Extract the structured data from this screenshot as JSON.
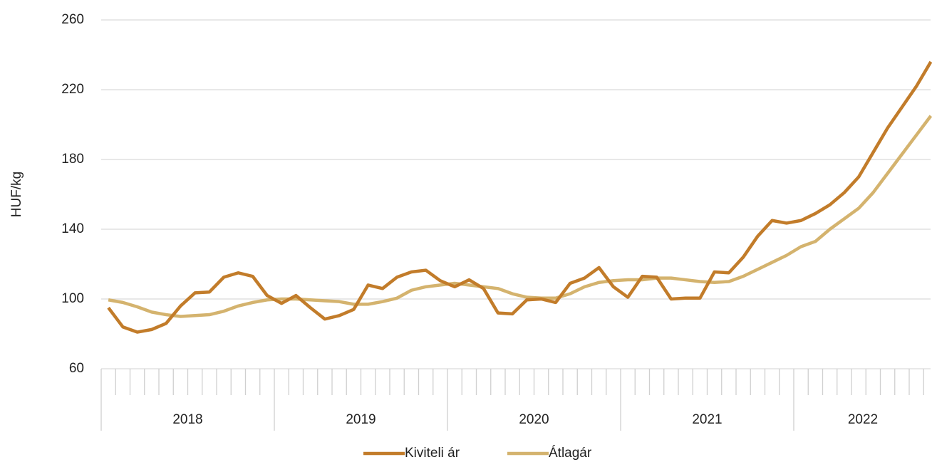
{
  "chart_data": {
    "type": "line",
    "y_label": "HUF/kg",
    "categories": [
      null,
      null,
      null,
      null,
      null,
      null,
      null,
      null,
      null,
      null,
      null,
      null,
      null,
      null,
      null,
      null,
      null,
      null,
      null,
      null,
      null,
      null,
      null,
      null,
      null,
      null,
      null,
      null,
      null,
      null,
      null,
      null,
      null,
      null,
      null,
      null,
      null,
      null,
      null,
      null,
      null,
      null,
      null,
      null,
      null,
      null,
      null,
      null,
      null,
      null,
      null,
      null,
      null,
      null,
      null,
      null,
      null,
      null
    ],
    "x_groups": [
      "2018",
      "2019",
      "2020",
      "2021",
      "2022"
    ],
    "series": [
      {
        "name": "Kiviteli ár",
        "color": "#c27c2a",
        "values": [
          95,
          84,
          81,
          82.5,
          86,
          96,
          103.5,
          104,
          112.5,
          115,
          113,
          102,
          97.5,
          102,
          95,
          88.5,
          90.5,
          94,
          108,
          106,
          112.5,
          115.5,
          116.5,
          110.5,
          107,
          111,
          106,
          92,
          91.5,
          99.5,
          100,
          98,
          109,
          112,
          118,
          107,
          101,
          113,
          112.5,
          100,
          100.5,
          100.5,
          115.5,
          115,
          124,
          136,
          145,
          143.5,
          145,
          149,
          154,
          161,
          170,
          184,
          198,
          210,
          222,
          236
        ]
      },
      {
        "name": "Átlagár",
        "color": "#d4b36e",
        "values": [
          99.5,
          98,
          95.5,
          92.5,
          91,
          90,
          90.5,
          91,
          93,
          96,
          98,
          99.5,
          100,
          100,
          99.5,
          99,
          98.5,
          97,
          97,
          98.5,
          100.5,
          105,
          107,
          108,
          109,
          108,
          107,
          106,
          103,
          101,
          100.5,
          100.5,
          103,
          107,
          109.5,
          110.5,
          111,
          111,
          112,
          112,
          111,
          110,
          109.5,
          110,
          113,
          117,
          121,
          125,
          130,
          133,
          140,
          146,
          152,
          161,
          172,
          183,
          194,
          205
        ]
      }
    ],
    "ylim": [
      60,
      260
    ],
    "yticks": [
      60,
      100,
      140,
      180,
      220,
      260
    ],
    "grid": true,
    "legend": "bottom"
  }
}
